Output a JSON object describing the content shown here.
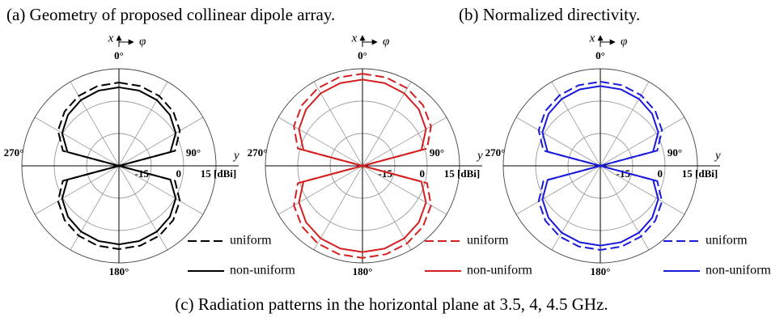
{
  "captions": {
    "a": "(a) Geometry of proposed collinear dipole array.",
    "b": "(b) Normalized directivity.",
    "c": "(c) Radiation patterns in the horizontal plane at 3.5, 4, 4.5 GHz."
  },
  "chart_data": [
    {
      "type": "polar",
      "x_label": "x",
      "phi_label": "φ",
      "y_label": "y",
      "angle_ticks": [
        {
          "value": 0,
          "label": "0°"
        },
        {
          "value": 90,
          "label": "90°"
        },
        {
          "value": 180,
          "label": "180°"
        },
        {
          "value": 270,
          "label": "270°"
        }
      ],
      "angle_grid_step": 30,
      "rlim": [
        -30,
        15
      ],
      "rticks": [
        -15,
        0,
        {
          "value": 15,
          "label": "15 [dBi]"
        }
      ],
      "theta": [
        0,
        15,
        30,
        45,
        60,
        75,
        90,
        105,
        120,
        135,
        150,
        165,
        180,
        195,
        210,
        225,
        240,
        255,
        270,
        285,
        300,
        315,
        330,
        345
      ],
      "series": [
        {
          "name": "uniform",
          "color": "#000000",
          "dash": true,
          "values": [
            8.6,
            8.3,
            7.4,
            5.6,
            2.6,
            -3.1,
            -30,
            -3.1,
            2.6,
            5.6,
            7.4,
            8.3,
            8.6,
            8.3,
            7.4,
            5.6,
            2.6,
            -3.1,
            -30,
            -3.1,
            2.6,
            5.6,
            7.4,
            8.3
          ]
        },
        {
          "name": "non-uniform",
          "color": "#000000",
          "dash": false,
          "values": [
            6.4,
            6.1,
            5.2,
            3.4,
            0.4,
            -5.3,
            -30,
            -5.3,
            0.4,
            3.4,
            5.2,
            6.1,
            6.4,
            6.1,
            5.2,
            3.4,
            0.4,
            -5.3,
            -30,
            -5.3,
            0.4,
            3.4,
            5.2,
            6.1
          ]
        }
      ]
    },
    {
      "type": "polar",
      "x_label": "x",
      "phi_label": "φ",
      "y_label": "y",
      "angle_ticks": [
        {
          "value": 0,
          "label": "0°"
        },
        {
          "value": 90,
          "label": "90°"
        },
        {
          "value": 180,
          "label": "180°"
        },
        {
          "value": 270,
          "label": "270°"
        }
      ],
      "angle_grid_step": 30,
      "rlim": [
        -30,
        15
      ],
      "rticks": [
        -15,
        0,
        {
          "value": 15,
          "label": "15 [dBi]"
        }
      ],
      "theta": [
        0,
        15,
        30,
        45,
        60,
        75,
        90,
        105,
        120,
        135,
        150,
        165,
        180,
        195,
        210,
        225,
        240,
        255,
        270,
        285,
        300,
        315,
        330,
        345
      ],
      "series": [
        {
          "name": "uniform",
          "color": "#d42020",
          "dash": true,
          "values": [
            12.7,
            12.4,
            11.5,
            9.7,
            6.7,
            1,
            -30,
            1,
            6.7,
            9.7,
            11.5,
            12.4,
            12.7,
            12.4,
            11.5,
            9.7,
            6.7,
            1,
            -30,
            1,
            6.7,
            9.7,
            11.5,
            12.4
          ]
        },
        {
          "name": "non-uniform",
          "color": "#d42020",
          "dash": false,
          "values": [
            10,
            9.7,
            8.8,
            7,
            4,
            -1.7,
            -30,
            -1.7,
            4,
            7,
            8.8,
            9.7,
            10,
            9.7,
            8.8,
            7,
            4,
            -1.7,
            -30,
            -1.7,
            4,
            7,
            8.8,
            9.7
          ]
        }
      ]
    },
    {
      "type": "polar",
      "x_label": "x",
      "phi_label": "φ",
      "y_label": "y",
      "angle_ticks": [
        {
          "value": 0,
          "label": "0°"
        },
        {
          "value": 90,
          "label": "90°"
        },
        {
          "value": 180,
          "label": "180°"
        },
        {
          "value": 270,
          "label": "270°"
        }
      ],
      "angle_grid_step": 30,
      "rlim": [
        -30,
        15
      ],
      "rticks": [
        -15,
        0,
        {
          "value": 15,
          "label": "15 [dBi]"
        }
      ],
      "theta": [
        0,
        15,
        30,
        45,
        60,
        75,
        90,
        105,
        120,
        135,
        150,
        165,
        180,
        195,
        210,
        225,
        240,
        255,
        270,
        285,
        300,
        315,
        330,
        345
      ],
      "series": [
        {
          "name": "uniform",
          "color": "#1a1adb",
          "dash": true,
          "values": [
            9,
            8.7,
            7.8,
            6,
            3,
            -2.7,
            -30,
            -2.7,
            3,
            6,
            7.8,
            8.7,
            9,
            8.7,
            7.8,
            6,
            3,
            -2.7,
            -30,
            -2.7,
            3,
            6,
            7.8,
            8.7
          ]
        },
        {
          "name": "non-uniform",
          "color": "#1a1adb",
          "dash": false,
          "values": [
            7,
            6.7,
            5.8,
            4,
            1,
            -4.7,
            -30,
            -4.7,
            1,
            4,
            5.8,
            6.7,
            7,
            6.7,
            5.8,
            4,
            1,
            -4.7,
            -30,
            -4.7,
            1,
            4,
            5.8,
            6.7
          ]
        }
      ]
    }
  ]
}
